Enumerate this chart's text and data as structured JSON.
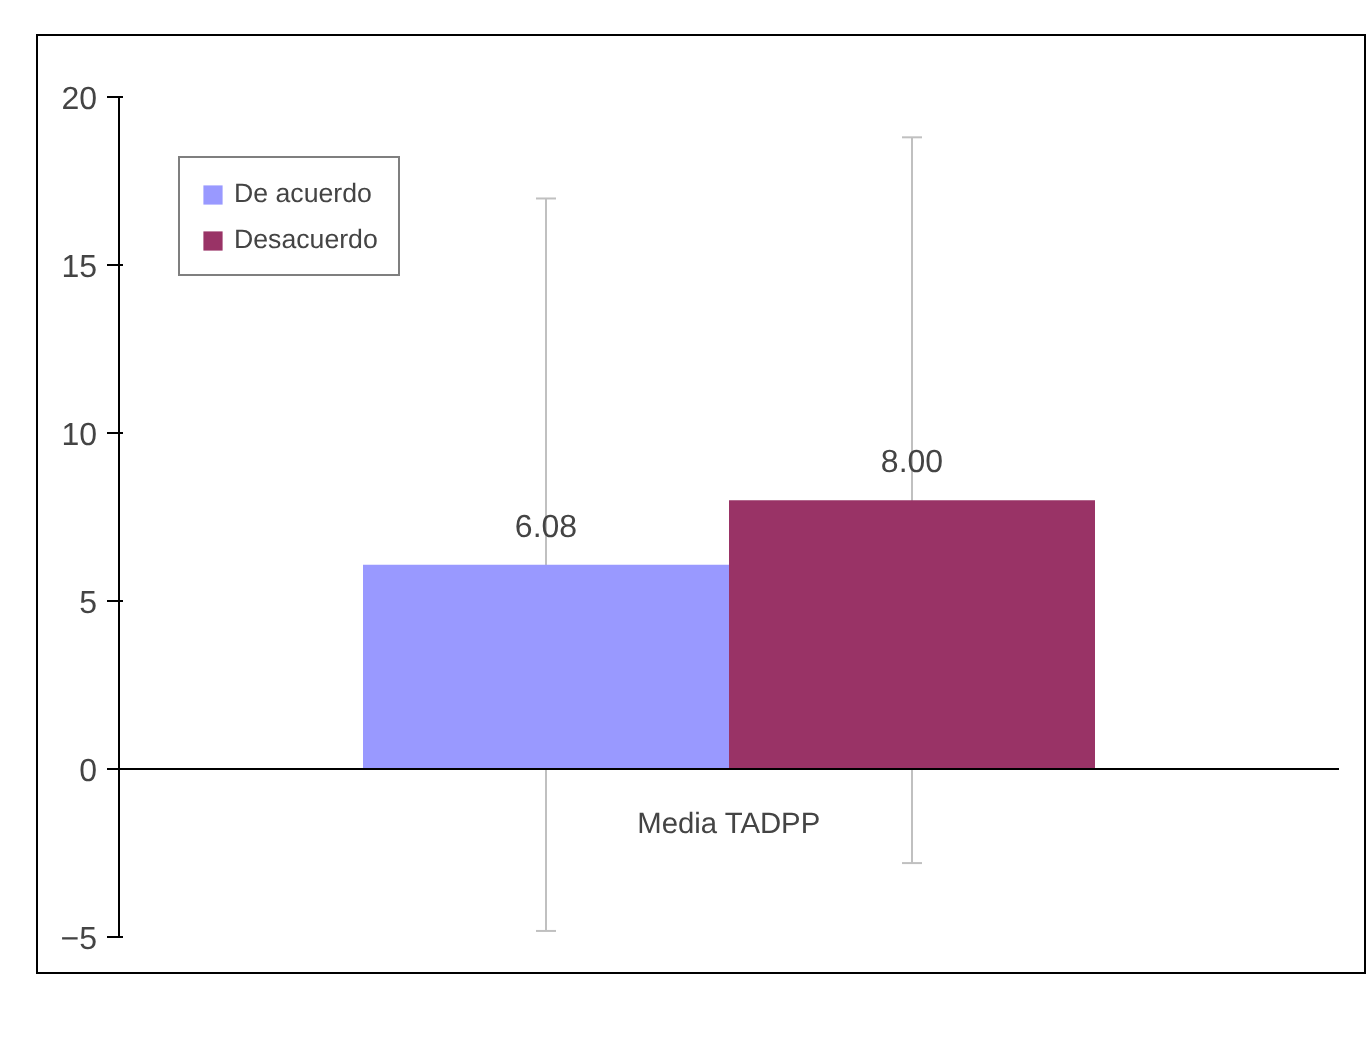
{
  "chart_data": {
    "type": "bar",
    "categories": [
      "Media TADPP"
    ],
    "series": [
      {
        "name": "De acuerdo",
        "color": "#9999ff",
        "values": [
          6.08
        ],
        "value_labels": [
          "6.08"
        ],
        "errors": [
          10.9
        ]
      },
      {
        "name": "Desacuerdo",
        "color": "#993366",
        "values": [
          8.0
        ],
        "value_labels": [
          "8.00"
        ],
        "errors": [
          10.8
        ]
      }
    ],
    "ylim": [
      -5,
      20
    ],
    "yticks": [
      -5,
      0,
      5,
      10,
      15,
      20
    ],
    "legend": "top left"
  }
}
